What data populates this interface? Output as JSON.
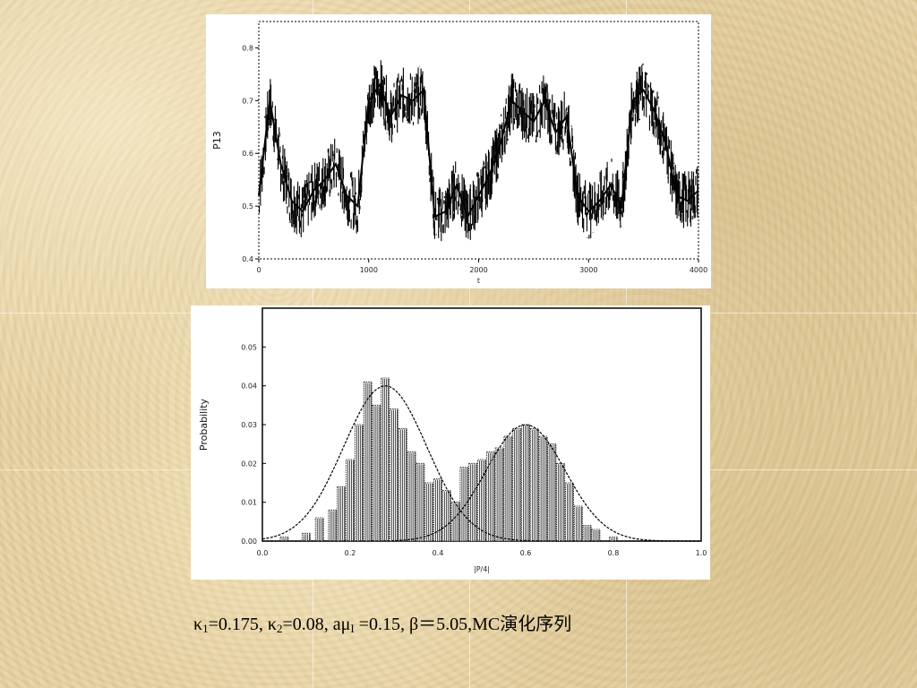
{
  "chart_data": [
    {
      "type": "line",
      "xlabel": "",
      "ylabel": "P13",
      "xlim": [
        0,
        4000
      ],
      "ylim": [
        0.4,
        0.85
      ],
      "x_ticks": [
        0,
        1000,
        2000,
        3000,
        4000
      ],
      "x_tick_labels": [
        "0",
        "1000",
        "2000",
        "3000",
        "4000"
      ],
      "y_ticks": [
        0.4,
        0.5,
        0.6,
        0.7,
        0.8
      ],
      "y_tick_labels": [
        "0.4",
        "0.5",
        "0.6",
        "0.7",
        "0.8"
      ],
      "x_axis_note": "t",
      "series": [
        {
          "x": [
            0,
            100,
            200,
            300,
            400,
            500,
            600,
            700,
            800,
            900,
            1000,
            1100,
            1200,
            1300,
            1400,
            1500,
            1600,
            1700,
            1800,
            1900,
            2000,
            2100,
            2200,
            2300,
            2400,
            2500,
            2600,
            2700,
            2800,
            2900,
            3000,
            3100,
            3200,
            3300,
            3400,
            3500,
            3600,
            3700,
            3800,
            3900,
            4000
          ],
          "values": [
            0.52,
            0.7,
            0.58,
            0.51,
            0.49,
            0.53,
            0.55,
            0.58,
            0.52,
            0.5,
            0.7,
            0.73,
            0.67,
            0.71,
            0.7,
            0.72,
            0.48,
            0.49,
            0.54,
            0.48,
            0.52,
            0.56,
            0.62,
            0.7,
            0.68,
            0.66,
            0.7,
            0.64,
            0.67,
            0.52,
            0.49,
            0.51,
            0.54,
            0.5,
            0.7,
            0.72,
            0.68,
            0.62,
            0.52,
            0.51,
            0.53
          ]
        }
      ]
    },
    {
      "type": "bar",
      "xlabel": "|P/4|",
      "ylabel": "Probability",
      "xlim": [
        0.0,
        1.0
      ],
      "ylim": [
        0.0,
        0.06
      ],
      "x_ticks": [
        0.0,
        0.2,
        0.4,
        0.6,
        0.8,
        1.0
      ],
      "x_tick_labels": [
        "0.0",
        "0.2",
        "0.4",
        "0.6",
        "0.8",
        "1.0"
      ],
      "y_ticks": [
        0.0,
        0.01,
        0.02,
        0.03,
        0.04,
        0.05
      ],
      "y_tick_labels": [
        "0.00",
        "0.01",
        "0.02",
        "0.03",
        "0.04",
        "0.05"
      ],
      "x": [
        0.05,
        0.1,
        0.13,
        0.16,
        0.18,
        0.2,
        0.22,
        0.24,
        0.26,
        0.28,
        0.3,
        0.32,
        0.34,
        0.36,
        0.38,
        0.4,
        0.42,
        0.44,
        0.46,
        0.48,
        0.5,
        0.52,
        0.54,
        0.56,
        0.58,
        0.6,
        0.62,
        0.64,
        0.66,
        0.68,
        0.7,
        0.72,
        0.74,
        0.76,
        0.8
      ],
      "values": [
        0.001,
        0.002,
        0.006,
        0.008,
        0.014,
        0.021,
        0.03,
        0.041,
        0.035,
        0.042,
        0.034,
        0.029,
        0.023,
        0.02,
        0.015,
        0.016,
        0.013,
        0.01,
        0.019,
        0.02,
        0.021,
        0.023,
        0.024,
        0.027,
        0.029,
        0.03,
        0.029,
        0.027,
        0.025,
        0.02,
        0.015,
        0.009,
        0.004,
        0.003,
        0.001
      ],
      "fits": [
        {
          "mean": 0.28,
          "sd": 0.095,
          "peak": 0.04
        },
        {
          "mean": 0.6,
          "sd": 0.09,
          "peak": 0.03
        }
      ]
    }
  ],
  "caption": {
    "kappa1_symbol": "κ",
    "kappa1_sub": "1",
    "kappa1_value": "=0.175,",
    "kappa2_symbol": " κ",
    "kappa2_sub": "2",
    "kappa2_value": "=0.08,",
    "amu_prefix": " aμ",
    "amu_sub": "I",
    "amu_value": " =0.15,",
    "beta_text": " β＝5.05,MC演化序列"
  }
}
